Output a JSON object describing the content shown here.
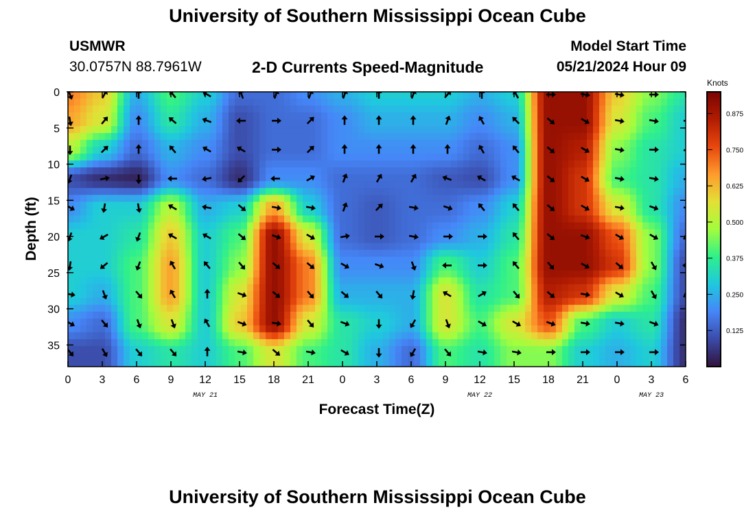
{
  "header": {
    "title": "University of Southern Mississippi Ocean Cube",
    "station_id": "USMWR",
    "station_coords": "30.0757N  88.7961W",
    "chart_name": "2-D Currents Speed-Magnitude",
    "model_label": "Model Start Time",
    "model_start": "05/21/2024 Hour 09"
  },
  "footer": {
    "title": "University of Southern Mississippi Ocean Cube"
  },
  "colors": {
    "palette": [
      "#30123b",
      "#3b4ba8",
      "#4686f8",
      "#1fc8de",
      "#2ff08b",
      "#a3fd3d",
      "#e3e036",
      "#fe9b2d",
      "#e8480e",
      "#b11c02",
      "#7a0403"
    ]
  },
  "chart_data": {
    "type": "heatmap",
    "title": "2-D Currents Speed-Magnitude",
    "xlabel": "Forecast Time(Z)",
    "ylabel": "Depth (ft)",
    "x_tick_labels": [
      "0",
      "3",
      "6",
      "9",
      "12",
      "15",
      "18",
      "21",
      "0",
      "3",
      "6",
      "9",
      "12",
      "15",
      "18",
      "21",
      "0",
      "3",
      "6"
    ],
    "x_hours_range": [
      0,
      54
    ],
    "date_labels": [
      {
        "text": "MAY 21",
        "hour": 12
      },
      {
        "text": "MAY 22",
        "hour": 36
      },
      {
        "text": "MAY 23",
        "hour": 51
      }
    ],
    "y_tick_labels": [
      "0",
      "5",
      "10",
      "15",
      "20",
      "25",
      "30",
      "35"
    ],
    "y_tick_values": [
      0,
      5,
      10,
      15,
      20,
      25,
      30,
      35
    ],
    "y_range": [
      0,
      38
    ],
    "colorbar": {
      "unit_label": "Knots",
      "range": [
        0,
        0.95
      ],
      "tick_values": [
        0.125,
        0.25,
        0.375,
        0.5,
        0.625,
        0.75,
        0.875
      ],
      "tick_labels": [
        "0.125",
        "0.250",
        "0.375",
        "0.500",
        "0.625",
        "0.750",
        "0.875"
      ]
    },
    "speed_field_knots": {
      "description": "Approximate current speed (knots); rows are depth, columns are forecast hour",
      "depths_ft": [
        0,
        4,
        8,
        12,
        16,
        20,
        24,
        28,
        32,
        36
      ],
      "hours": [
        0,
        3,
        6,
        9,
        12,
        15,
        18,
        21,
        24,
        27,
        30,
        33,
        36,
        39,
        42,
        45,
        48,
        51,
        54
      ],
      "values": [
        [
          0.7,
          0.6,
          0.25,
          0.4,
          0.3,
          0.15,
          0.15,
          0.2,
          0.25,
          0.3,
          0.3,
          0.3,
          0.25,
          0.3,
          0.9,
          0.9,
          0.6,
          0.45,
          0.35
        ],
        [
          0.65,
          0.55,
          0.2,
          0.35,
          0.25,
          0.1,
          0.15,
          0.15,
          0.2,
          0.25,
          0.25,
          0.25,
          0.2,
          0.25,
          0.9,
          0.9,
          0.55,
          0.4,
          0.3
        ],
        [
          0.5,
          0.3,
          0.15,
          0.25,
          0.2,
          0.1,
          0.15,
          0.15,
          0.2,
          0.2,
          0.2,
          0.2,
          0.15,
          0.2,
          0.9,
          0.85,
          0.45,
          0.35,
          0.3
        ],
        [
          0.1,
          0.05,
          0.03,
          0.2,
          0.15,
          0.05,
          0.2,
          0.2,
          0.15,
          0.15,
          0.15,
          0.12,
          0.1,
          0.2,
          0.9,
          0.8,
          0.4,
          0.35,
          0.25
        ],
        [
          0.2,
          0.3,
          0.3,
          0.5,
          0.25,
          0.3,
          0.65,
          0.3,
          0.15,
          0.12,
          0.15,
          0.15,
          0.2,
          0.3,
          0.9,
          0.8,
          0.55,
          0.35,
          0.2
        ],
        [
          0.3,
          0.3,
          0.35,
          0.6,
          0.3,
          0.4,
          0.9,
          0.55,
          0.15,
          0.12,
          0.15,
          0.2,
          0.25,
          0.35,
          0.9,
          0.9,
          0.75,
          0.45,
          0.15
        ],
        [
          0.3,
          0.3,
          0.4,
          0.65,
          0.3,
          0.45,
          0.9,
          0.7,
          0.2,
          0.2,
          0.2,
          0.4,
          0.3,
          0.4,
          0.9,
          0.9,
          0.8,
          0.45,
          0.1
        ],
        [
          0.3,
          0.25,
          0.4,
          0.65,
          0.3,
          0.55,
          0.9,
          0.7,
          0.25,
          0.25,
          0.25,
          0.55,
          0.35,
          0.4,
          0.85,
          0.8,
          0.55,
          0.4,
          0.1
        ],
        [
          0.2,
          0.15,
          0.4,
          0.55,
          0.3,
          0.6,
          0.9,
          0.55,
          0.35,
          0.3,
          0.25,
          0.55,
          0.4,
          0.55,
          0.75,
          0.4,
          0.3,
          0.35,
          0.05
        ],
        [
          0.1,
          0.1,
          0.3,
          0.35,
          0.3,
          0.4,
          0.55,
          0.4,
          0.35,
          0.25,
          0.15,
          0.4,
          0.35,
          0.45,
          0.45,
          0.3,
          0.25,
          0.3,
          0.05
        ]
      ]
    },
    "arrow_directions_deg": {
      "description": "Approximate current direction (degrees clockwise from north) on an arrow grid",
      "depths_ft": [
        0,
        4,
        8,
        12,
        16,
        20,
        24,
        28,
        32,
        36
      ],
      "hours": [
        0,
        3,
        6,
        9,
        12,
        15,
        18,
        21,
        24,
        27,
        30,
        33,
        36,
        39,
        42,
        45,
        48,
        51,
        54
      ],
      "values": [
        [
          160,
          30,
          0,
          320,
          300,
          340,
          20,
          20,
          20,
          0,
          20,
          40,
          0,
          330,
          90,
          100,
          100,
          90,
          0
        ],
        [
          170,
          40,
          0,
          310,
          290,
          270,
          90,
          45,
          0,
          0,
          0,
          20,
          330,
          315,
          130,
          120,
          100,
          100,
          90
        ],
        [
          180,
          45,
          0,
          320,
          300,
          300,
          90,
          45,
          0,
          0,
          0,
          0,
          330,
          320,
          130,
          120,
          100,
          90,
          80
        ],
        [
          200,
          80,
          180,
          270,
          260,
          225,
          270,
          60,
          20,
          30,
          30,
          290,
          300,
          300,
          130,
          120,
          100,
          100,
          80
        ],
        [
          120,
          190,
          170,
          300,
          280,
          130,
          100,
          100,
          20,
          45,
          100,
          110,
          320,
          320,
          130,
          120,
          100,
          110,
          90
        ],
        [
          200,
          240,
          200,
          300,
          300,
          130,
          110,
          120,
          80,
          90,
          100,
          90,
          90,
          320,
          130,
          110,
          120,
          120,
          240
        ],
        [
          190,
          230,
          200,
          330,
          320,
          140,
          130,
          130,
          120,
          110,
          160,
          270,
          90,
          320,
          140,
          120,
          130,
          150,
          270
        ],
        [
          100,
          160,
          140,
          330,
          0,
          110,
          130,
          140,
          130,
          140,
          190,
          300,
          60,
          140,
          130,
          100,
          120,
          150,
          240
        ],
        [
          120,
          140,
          160,
          160,
          330,
          110,
          100,
          140,
          110,
          180,
          210,
          160,
          120,
          120,
          110,
          100,
          100,
          110,
          0
        ],
        [
          140,
          150,
          140,
          140,
          0,
          100,
          130,
          100,
          120,
          180,
          210,
          140,
          100,
          100,
          90,
          90,
          90,
          90,
          0
        ]
      ]
    }
  }
}
